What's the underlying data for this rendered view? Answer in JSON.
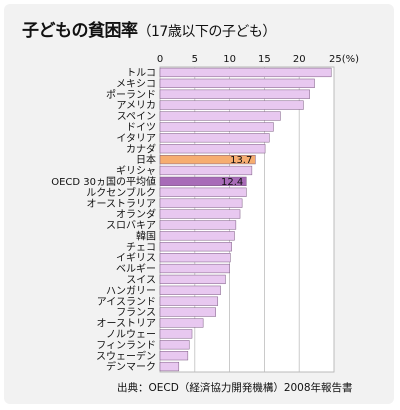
{
  "title": "子どもの貧困率",
  "subtitle": "（17歳以下の子ども）",
  "source": "出典：OECD（経済協力開発機構）2008年報告書",
  "colors": {
    "bar": "#e8c8f0",
    "japan": "#f6ad70",
    "oecd": "#a86cb8",
    "japan_label": "#e07000",
    "oecd_label": "#8a3aa0"
  },
  "chart_data": {
    "type": "bar",
    "orientation": "horizontal",
    "title": "子どもの貧困率（17歳以下の子ども）",
    "xlim": [
      0,
      25
    ],
    "x_ticks": [
      0,
      5,
      10,
      15,
      20,
      25
    ],
    "x_tick_labels": [
      "0",
      "5",
      "10",
      "15",
      "20",
      "25(%)"
    ],
    "categories": [
      "トルコ",
      "メキシコ",
      "ポーランド",
      "アメリカ",
      "スペイン",
      "ドイツ",
      "イタリア",
      "カナダ",
      "日本",
      "ギリシャ",
      "OECD 30ヵ国の平均値",
      "ルクセンブルク",
      "オーストラリア",
      "オランダ",
      "スロバキア",
      "韓国",
      "チェコ",
      "イギリス",
      "ベルギー",
      "スイス",
      "ハンガリー",
      "アイスランド",
      "フランス",
      "オーストリア",
      "ノルウェー",
      "フィンランド",
      "スウェーデン",
      "デンマーク"
    ],
    "values": [
      24.6,
      22.2,
      21.5,
      20.6,
      17.3,
      16.3,
      15.7,
      15.1,
      13.7,
      13.2,
      12.4,
      12.4,
      11.8,
      11.5,
      10.9,
      10.7,
      10.3,
      10.1,
      10.0,
      9.4,
      8.7,
      8.3,
      8.0,
      6.2,
      4.6,
      4.2,
      4.0,
      2.7
    ],
    "data_labels": {
      "日本": "13.7",
      "OECD 30ヵ国の平均値": "12.4"
    },
    "highlight": {
      "日本": "japan",
      "OECD 30ヵ国の平均値": "oecd"
    },
    "grid": true
  }
}
